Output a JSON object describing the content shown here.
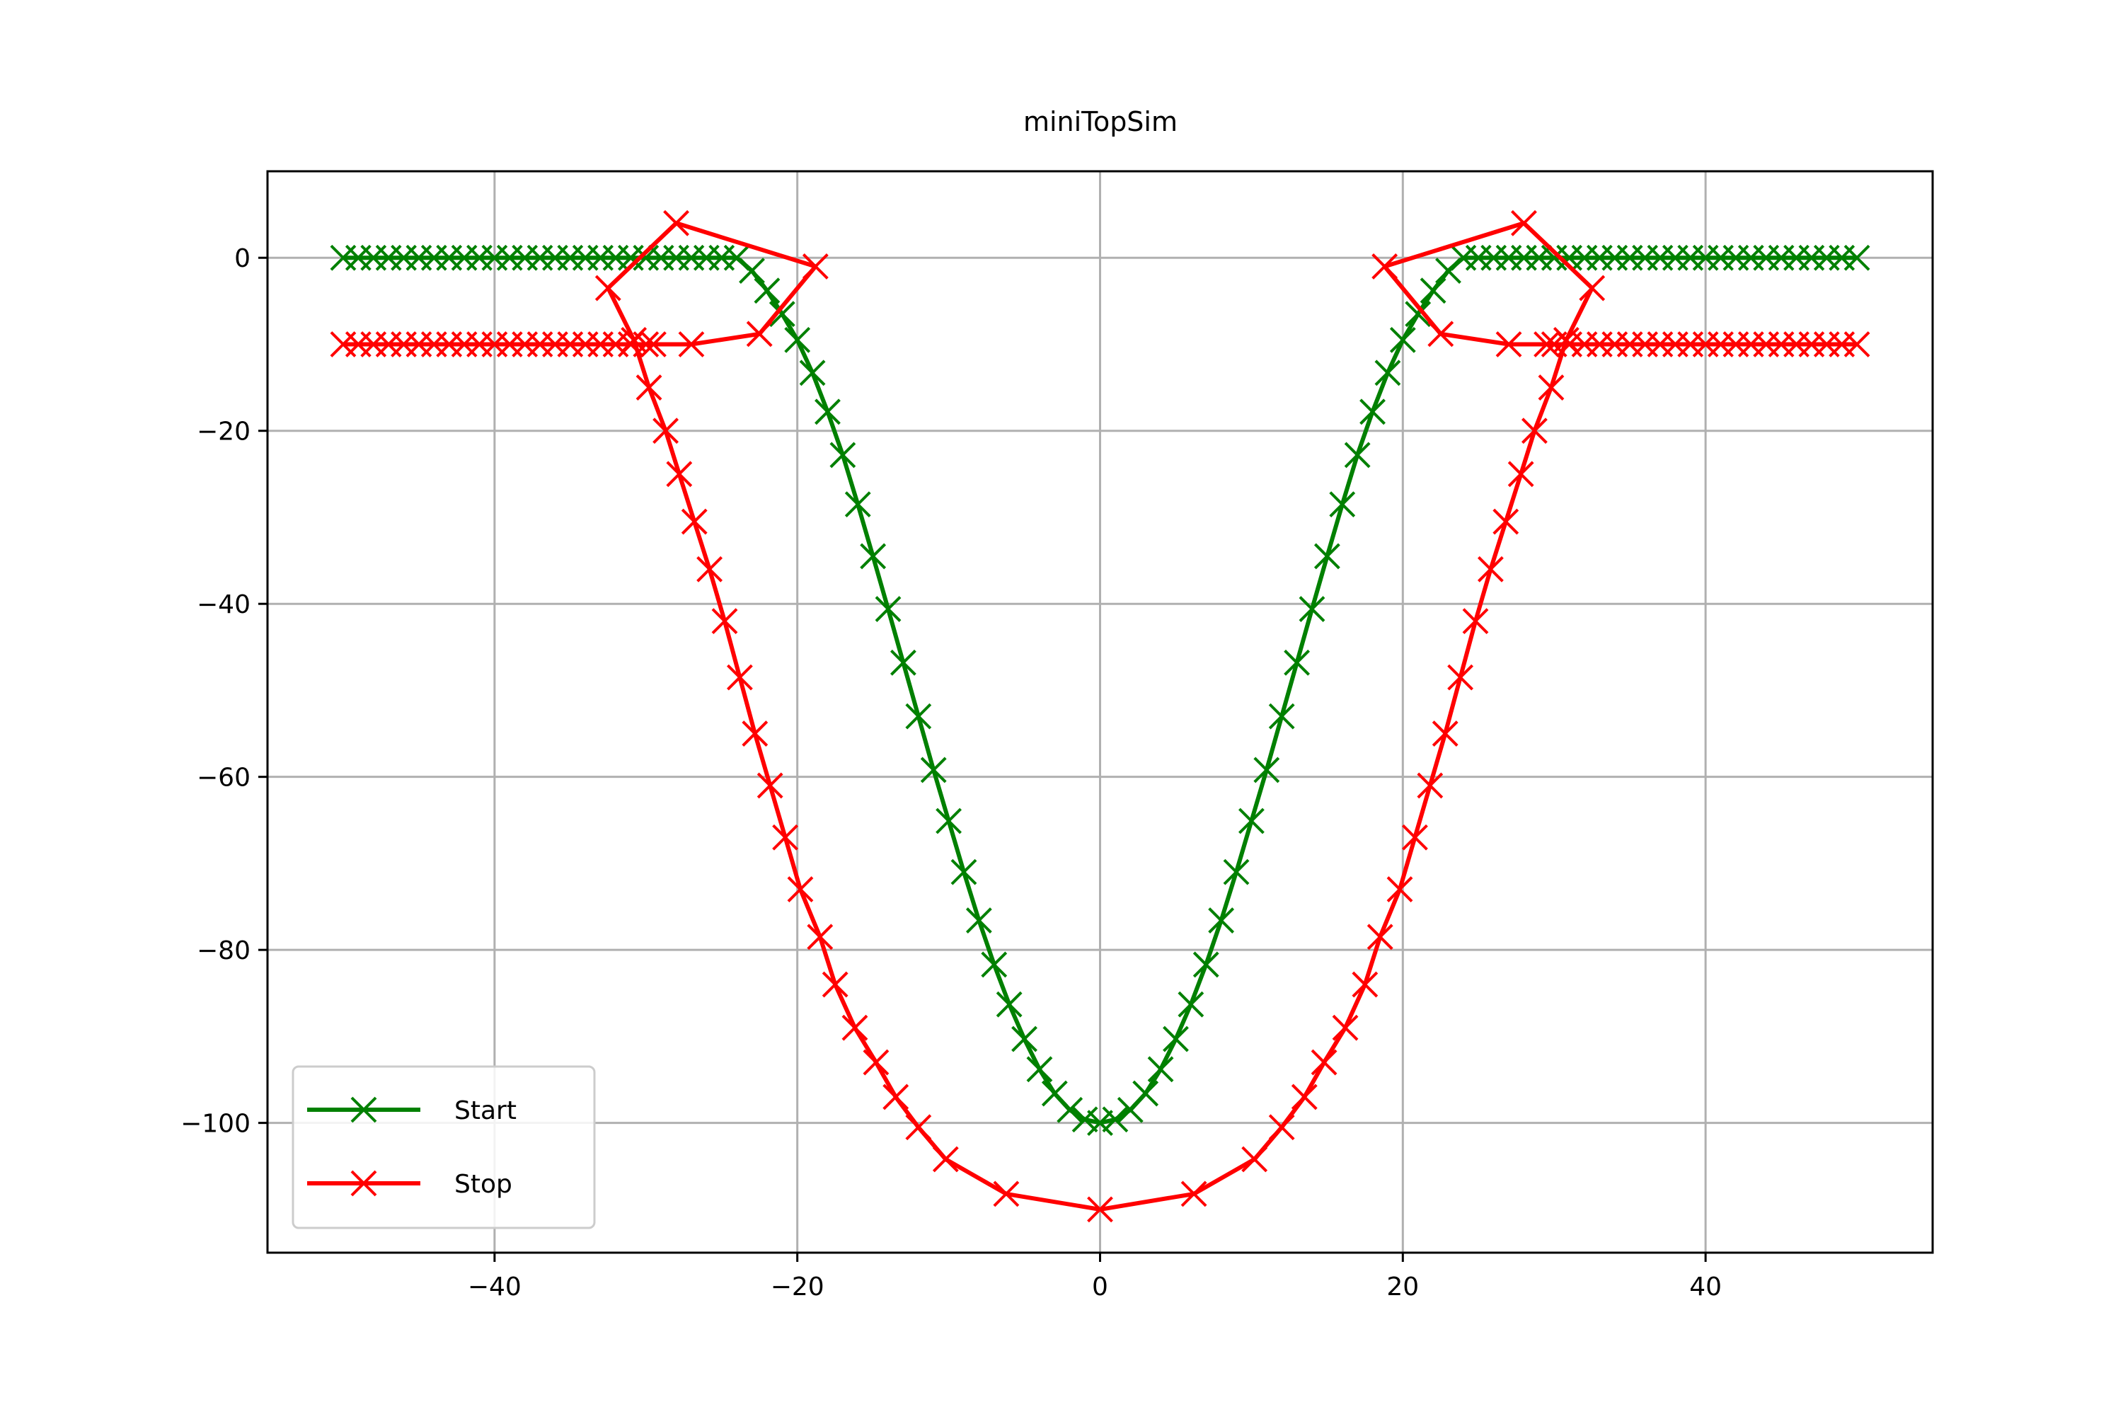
{
  "chart_data": {
    "type": "line",
    "title": "miniTopSim",
    "xlabel": "",
    "ylabel": "",
    "xlim": [
      -55,
      55
    ],
    "ylim": [
      -115,
      10
    ],
    "x_ticks": [
      -40,
      -20,
      0,
      20,
      40
    ],
    "x_tick_labels": [
      "−40",
      "−20",
      "0",
      "20",
      "40"
    ],
    "y_ticks": [
      0,
      -20,
      -40,
      -60,
      -80,
      -100
    ],
    "y_tick_labels": [
      "0",
      "−20",
      "−40",
      "−60",
      "−80",
      "−100"
    ],
    "grid": true,
    "legend_position": "lower-left",
    "series": [
      {
        "name": "Start",
        "color": "#008000",
        "marker": "x",
        "points": [
          [
            -50,
            0
          ],
          [
            -49,
            0
          ],
          [
            -48,
            0
          ],
          [
            -47,
            0
          ],
          [
            -46,
            0
          ],
          [
            -45,
            0
          ],
          [
            -44,
            0
          ],
          [
            -43,
            0
          ],
          [
            -42,
            0
          ],
          [
            -41,
            0
          ],
          [
            -40,
            0
          ],
          [
            -39,
            0
          ],
          [
            -38,
            0
          ],
          [
            -37,
            0
          ],
          [
            -36,
            0
          ],
          [
            -35,
            0
          ],
          [
            -34,
            0
          ],
          [
            -33,
            0
          ],
          [
            -32,
            0
          ],
          [
            -31,
            0
          ],
          [
            -30,
            0
          ],
          [
            -29,
            0
          ],
          [
            -28,
            0
          ],
          [
            -27,
            0
          ],
          [
            -26,
            0
          ],
          [
            -25,
            0
          ],
          [
            -24,
            0
          ],
          [
            -23,
            -1.5
          ],
          [
            -22,
            -3.8
          ],
          [
            -21,
            -6.5
          ],
          [
            -20,
            -9.5
          ],
          [
            -19,
            -13.3
          ],
          [
            -18,
            -17.8
          ],
          [
            -17,
            -22.8
          ],
          [
            -16,
            -28.5
          ],
          [
            -15,
            -34.5
          ],
          [
            -14,
            -40.6
          ],
          [
            -13,
            -46.8
          ],
          [
            -12,
            -53
          ],
          [
            -11,
            -59.2
          ],
          [
            -10,
            -65.1
          ],
          [
            -9,
            -71
          ],
          [
            -8,
            -76.6
          ],
          [
            -7,
            -81.7
          ],
          [
            -6,
            -86.3
          ],
          [
            -5,
            -90.3
          ],
          [
            -4,
            -93.8
          ],
          [
            -3,
            -96.6
          ],
          [
            -2,
            -98.5
          ],
          [
            -1,
            -99.6
          ],
          [
            0,
            -100
          ],
          [
            1,
            -99.6
          ],
          [
            2,
            -98.5
          ],
          [
            3,
            -96.6
          ],
          [
            4,
            -93.8
          ],
          [
            5,
            -90.3
          ],
          [
            6,
            -86.3
          ],
          [
            7,
            -81.7
          ],
          [
            8,
            -76.6
          ],
          [
            9,
            -71
          ],
          [
            10,
            -65.1
          ],
          [
            11,
            -59.2
          ],
          [
            12,
            -53
          ],
          [
            13,
            -46.8
          ],
          [
            14,
            -40.6
          ],
          [
            15,
            -34.5
          ],
          [
            16,
            -28.5
          ],
          [
            17,
            -22.8
          ],
          [
            18,
            -17.8
          ],
          [
            19,
            -13.3
          ],
          [
            20,
            -9.5
          ],
          [
            21,
            -6.5
          ],
          [
            22,
            -3.8
          ],
          [
            23,
            -1.5
          ],
          [
            24,
            0
          ],
          [
            25,
            0
          ],
          [
            26,
            0
          ],
          [
            27,
            0
          ],
          [
            28,
            0
          ],
          [
            29,
            0
          ],
          [
            30,
            0
          ],
          [
            31,
            0
          ],
          [
            32,
            0
          ],
          [
            33,
            0
          ],
          [
            34,
            0
          ],
          [
            35,
            0
          ],
          [
            36,
            0
          ],
          [
            37,
            0
          ],
          [
            38,
            0
          ],
          [
            39,
            0
          ],
          [
            40,
            0
          ],
          [
            41,
            0
          ],
          [
            42,
            0
          ],
          [
            43,
            0
          ],
          [
            44,
            0
          ],
          [
            45,
            0
          ],
          [
            46,
            0
          ],
          [
            47,
            0
          ],
          [
            48,
            0
          ],
          [
            49,
            0
          ],
          [
            50,
            0
          ]
        ]
      },
      {
        "name": "Stop",
        "color": "#ff0000",
        "marker": "x",
        "points": [
          [
            -50,
            -10
          ],
          [
            -49,
            -10
          ],
          [
            -48,
            -10
          ],
          [
            -47,
            -10
          ],
          [
            -46,
            -10
          ],
          [
            -45,
            -10
          ],
          [
            -44,
            -10
          ],
          [
            -43,
            -10
          ],
          [
            -42,
            -10
          ],
          [
            -41,
            -10
          ],
          [
            -40,
            -10
          ],
          [
            -39,
            -10
          ],
          [
            -38,
            -10
          ],
          [
            -37,
            -10
          ],
          [
            -36,
            -10
          ],
          [
            -35,
            -10
          ],
          [
            -34,
            -10
          ],
          [
            -33,
            -10
          ],
          [
            -32,
            -10
          ],
          [
            -31,
            -10
          ],
          [
            -30,
            -10
          ],
          [
            -29.5,
            -10
          ],
          [
            -27,
            -10
          ],
          [
            -22.5,
            -8.8
          ],
          [
            -18.8,
            -1
          ],
          [
            -28,
            4
          ],
          [
            -32.5,
            -3.5
          ],
          [
            -30.8,
            -9.5
          ],
          [
            -29.8,
            -15
          ],
          [
            -28.7,
            -20
          ],
          [
            -27.8,
            -25
          ],
          [
            -26.8,
            -30.5
          ],
          [
            -25.8,
            -36
          ],
          [
            -24.8,
            -42
          ],
          [
            -23.8,
            -48.5
          ],
          [
            -22.8,
            -55
          ],
          [
            -21.8,
            -61
          ],
          [
            -20.8,
            -67
          ],
          [
            -19.8,
            -73
          ],
          [
            -18.5,
            -78.5
          ],
          [
            -17.5,
            -84
          ],
          [
            -16.2,
            -89
          ],
          [
            -14.8,
            -93
          ],
          [
            -13.5,
            -97
          ],
          [
            -12,
            -100.5
          ],
          [
            -10.2,
            -104.2
          ],
          [
            -6.2,
            -108.2
          ],
          [
            0,
            -110
          ],
          [
            6.2,
            -108.2
          ],
          [
            10.2,
            -104.2
          ],
          [
            12,
            -100.5
          ],
          [
            13.5,
            -97
          ],
          [
            14.8,
            -93
          ],
          [
            16.2,
            -89
          ],
          [
            17.5,
            -84
          ],
          [
            18.5,
            -78.5
          ],
          [
            19.8,
            -73
          ],
          [
            20.8,
            -67
          ],
          [
            21.8,
            -61
          ],
          [
            22.8,
            -55
          ],
          [
            23.8,
            -48.5
          ],
          [
            24.8,
            -42
          ],
          [
            25.8,
            -36
          ],
          [
            26.8,
            -30.5
          ],
          [
            27.8,
            -25
          ],
          [
            28.7,
            -20
          ],
          [
            29.8,
            -15
          ],
          [
            30.8,
            -9.5
          ],
          [
            32.5,
            -3.5
          ],
          [
            28,
            4
          ],
          [
            18.8,
            -1
          ],
          [
            22.5,
            -8.8
          ],
          [
            27,
            -10
          ],
          [
            29.5,
            -10
          ],
          [
            30,
            -10
          ],
          [
            31,
            -10
          ],
          [
            32,
            -10
          ],
          [
            33,
            -10
          ],
          [
            34,
            -10
          ],
          [
            35,
            -10
          ],
          [
            36,
            -10
          ],
          [
            37,
            -10
          ],
          [
            38,
            -10
          ],
          [
            39,
            -10
          ],
          [
            40,
            -10
          ],
          [
            41,
            -10
          ],
          [
            42,
            -10
          ],
          [
            43,
            -10
          ],
          [
            44,
            -10
          ],
          [
            45,
            -10
          ],
          [
            46,
            -10
          ],
          [
            47,
            -10
          ],
          [
            48,
            -10
          ],
          [
            49,
            -10
          ],
          [
            50,
            -10
          ]
        ]
      }
    ]
  }
}
